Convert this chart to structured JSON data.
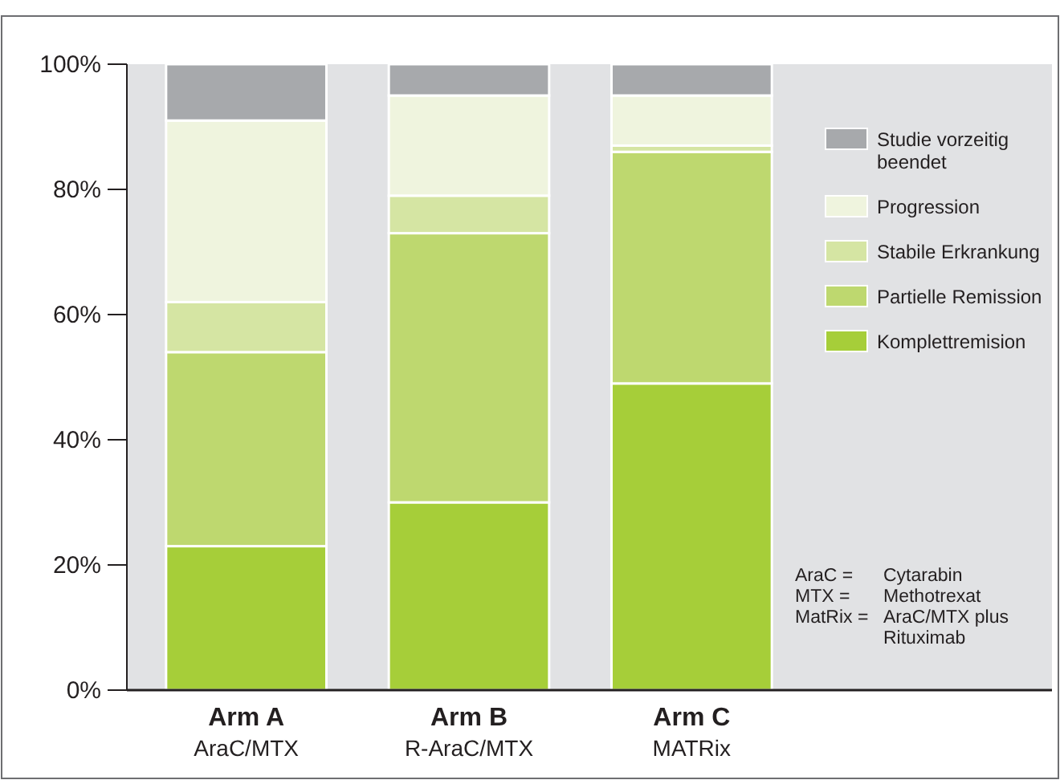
{
  "chart_data": {
    "type": "bar",
    "stacked": true,
    "categories": [
      "Arm A\nAraC/MTX",
      "Arm B\nR-AraC/MTX",
      "Arm C\nMATRix"
    ],
    "series": [
      {
        "name": "Komplettremision",
        "color": "#a6ce39",
        "values": [
          23,
          30,
          49
        ]
      },
      {
        "name": "Partielle Remission",
        "color": "#bed86f",
        "values": [
          31,
          43,
          37
        ]
      },
      {
        "name": "Stabile Erkrankung",
        "color": "#d5e5a3",
        "values": [
          8,
          6,
          1
        ]
      },
      {
        "name": "Progression",
        "color": "#eff4de",
        "values": [
          29,
          16,
          8
        ]
      },
      {
        "name": "Studie vorzeitig beendet",
        "color": "#a7a9ac",
        "values": [
          9,
          5,
          5
        ]
      }
    ],
    "ylim": [
      0,
      100
    ],
    "yticks": [
      {
        "value": 0,
        "label": "0%"
      },
      {
        "value": 20,
        "label": "20%"
      },
      {
        "value": 40,
        "label": "40%"
      },
      {
        "value": 60,
        "label": "60%"
      },
      {
        "value": 80,
        "label": "80%"
      },
      {
        "value": 100,
        "label": "100%"
      }
    ],
    "legend": "top right",
    "annotations": [
      "AraC = Cytarabin",
      "MTX = Methotrexat",
      "MatRix = AraC/MTX plus Rituximab"
    ]
  }
}
